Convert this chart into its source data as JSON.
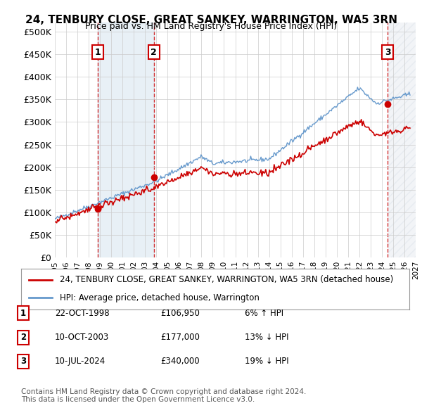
{
  "title": "24, TENBURY CLOSE, GREAT SANKEY, WARRINGTON, WA5 3RN",
  "subtitle": "Price paid vs. HM Land Registry's House Price Index (HPI)",
  "xlim_start": 1995.0,
  "xlim_end": 2027.0,
  "ylim": [
    0,
    520000
  ],
  "yticks": [
    0,
    50000,
    100000,
    150000,
    200000,
    250000,
    300000,
    350000,
    400000,
    450000,
    500000
  ],
  "ytick_labels": [
    "£0",
    "£50K",
    "£100K",
    "£150K",
    "£200K",
    "£250K",
    "£300K",
    "£350K",
    "£400K",
    "£450K",
    "£500K"
  ],
  "sale_dates": [
    1998.81,
    2003.78,
    2024.53
  ],
  "sale_prices": [
    106950,
    177000,
    340000
  ],
  "sale_labels": [
    "1",
    "2",
    "3"
  ],
  "vline_color": "#cc0000",
  "shade1_start": 1998.81,
  "shade1_end": 2003.78,
  "shade2_start": 2024.53,
  "legend_label_red": "24, TENBURY CLOSE, GREAT SANKEY, WARRINGTON, WA5 3RN (detached house)",
  "legend_label_blue": "HPI: Average price, detached house, Warrington",
  "table_rows": [
    {
      "num": "1",
      "date": "22-OCT-1998",
      "price": "£106,950",
      "hpi": "6% ↑ HPI"
    },
    {
      "num": "2",
      "date": "10-OCT-2003",
      "price": "£177,000",
      "hpi": "13% ↓ HPI"
    },
    {
      "num": "3",
      "date": "10-JUL-2024",
      "price": "£340,000",
      "hpi": "19% ↓ HPI"
    }
  ],
  "footer": "Contains HM Land Registry data © Crown copyright and database right 2024.\nThis data is licensed under the Open Government Licence v3.0.",
  "background_color": "#ffffff",
  "grid_color": "#cccccc",
  "plot_bg": "#ffffff",
  "hpi_line_color": "#6699cc",
  "price_line_color": "#cc0000"
}
